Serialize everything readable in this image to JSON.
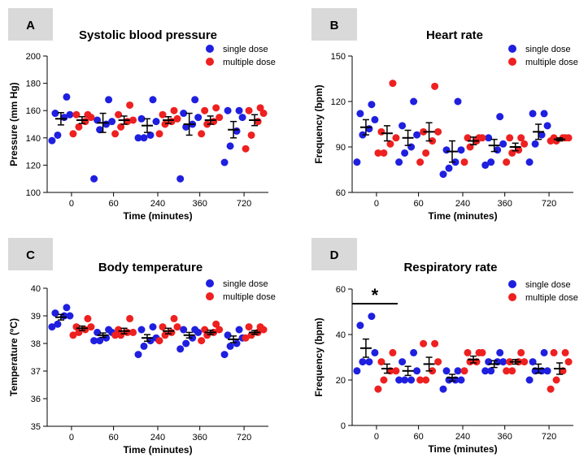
{
  "chart_data": [
    {
      "panel_label": "A",
      "type": "scatter",
      "title": "Systolic blood pressure",
      "xlabel": "Time (minutes)",
      "ylabel": "Pressure (mm Hg)",
      "ylim": [
        100,
        200
      ],
      "yticks": [
        100,
        120,
        140,
        160,
        180,
        200
      ],
      "categories": [
        "0",
        "60",
        "240",
        "360",
        "720"
      ],
      "legend": [
        "single dose",
        "multiple dose"
      ],
      "series": [
        {
          "name": "single dose",
          "color": "#1f1fe0",
          "points": [
            [
              138,
              142,
              155,
              157,
              158,
              170
            ],
            [
              110,
              146,
              150,
              152,
              153,
              168
            ],
            [
              140,
              140,
              142,
              152,
              154,
              168
            ],
            [
              110,
              148,
              150,
              155,
              158,
              168
            ],
            [
              122,
              134,
              145,
              155,
              160,
              160
            ]
          ],
          "mean": [
            154,
            151,
            149,
            150,
            146
          ],
          "sem": [
            4.5,
            7,
            5,
            8,
            6
          ]
        },
        {
          "name": "multiple dose",
          "color": "#ee2020",
          "points": [
            [
              143,
              148,
              152,
              155,
              157,
              157
            ],
            [
              143,
              148,
              152,
              153,
              157,
              164
            ],
            [
              143,
              150,
              152,
              154,
              157,
              160
            ],
            [
              143,
              150,
              152,
              155,
              160,
              162
            ],
            [
              132,
              142,
              152,
              158,
              160,
              162
            ]
          ],
          "mean": [
            153,
            153,
            153,
            153,
            153
          ],
          "sem": [
            2.5,
            3,
            2.5,
            3,
            4
          ]
        }
      ]
    },
    {
      "panel_label": "B",
      "type": "scatter",
      "title": "Heart rate",
      "xlabel": "Time (minutes)",
      "ylabel": "Frequency (bpm)",
      "ylim": [
        60,
        150
      ],
      "yticks": [
        60,
        90,
        120,
        150
      ],
      "categories": [
        "0",
        "60",
        "240",
        "360",
        "720"
      ],
      "legend": [
        "single dose",
        "multiple dose"
      ],
      "series": [
        {
          "name": "single dose",
          "color": "#1f1fe0",
          "points": [
            [
              80,
              98,
              102,
              108,
              112,
              118
            ],
            [
              80,
              86,
              90,
              98,
              104,
              120
            ],
            [
              72,
              76,
              80,
              88,
              88,
              120
            ],
            [
              78,
              80,
              88,
              92,
              96,
              110
            ],
            [
              80,
              92,
              98,
              104,
              112,
              112
            ]
          ],
          "mean": [
            103,
            96,
            87,
            91,
            100
          ],
          "sem": [
            5,
            5,
            7,
            4,
            5
          ]
        },
        {
          "name": "multiple dose",
          "color": "#ee2020",
          "points": [
            [
              86,
              86,
              92,
              96,
              100,
              132
            ],
            [
              80,
              86,
              94,
              100,
              100,
              130
            ],
            [
              80,
              90,
              94,
              96,
              96,
              96
            ],
            [
              80,
              86,
              88,
              92,
              96,
              96
            ],
            [
              94,
              94,
              96,
              96,
              96,
              96
            ]
          ],
          "mean": [
            99,
            100,
            94,
            90,
            95
          ],
          "sem": [
            5,
            6,
            2.5,
            2.5,
            1
          ]
        }
      ]
    },
    {
      "panel_label": "C",
      "type": "scatter",
      "title": "Body temperature",
      "xlabel": "Time (minutes)",
      "ylabel": "Temperature (ºC)",
      "ylim": [
        35,
        40
      ],
      "yticks": [
        35,
        36,
        37,
        38,
        39,
        40
      ],
      "categories": [
        "0",
        "60",
        "240",
        "360",
        "720"
      ],
      "legend": [
        "single dose",
        "multiple dose"
      ],
      "series": [
        {
          "name": "single dose",
          "color": "#1f1fe0",
          "points": [
            [
              38.6,
              38.7,
              39.0,
              39.0,
              39.1,
              39.3
            ],
            [
              38.1,
              38.1,
              38.2,
              38.4,
              38.4,
              38.5
            ],
            [
              37.6,
              37.9,
              38.1,
              38.2,
              38.5,
              38.6
            ],
            [
              37.8,
              38.0,
              38.2,
              38.4,
              38.5,
              38.5
            ],
            [
              37.6,
              37.9,
              38.0,
              38.2,
              38.3,
              38.5
            ]
          ],
          "mean": [
            38.95,
            38.3,
            38.2,
            38.3,
            38.15
          ],
          "sem": [
            0.1,
            0.08,
            0.12,
            0.1,
            0.12
          ]
        },
        {
          "name": "multiple dose",
          "color": "#ee2020",
          "points": [
            [
              38.3,
              38.4,
              38.5,
              38.6,
              38.6,
              38.9
            ],
            [
              38.3,
              38.3,
              38.4,
              38.4,
              38.5,
              38.9
            ],
            [
              38.1,
              38.3,
              38.4,
              38.6,
              38.6,
              38.9
            ],
            [
              38.1,
              38.3,
              38.4,
              38.5,
              38.5,
              38.7
            ],
            [
              38.2,
              38.3,
              38.4,
              38.5,
              38.6,
              38.6
            ]
          ],
          "mean": [
            38.55,
            38.45,
            38.45,
            38.4,
            38.4
          ],
          "sem": [
            0.08,
            0.1,
            0.1,
            0.08,
            0.07
          ]
        }
      ]
    },
    {
      "panel_label": "D",
      "type": "scatter",
      "title": "Respiratory rate",
      "xlabel": "Time (minutes)",
      "ylabel": "Frequency (bpm)",
      "ylim": [
        0,
        60
      ],
      "yticks": [
        0,
        20,
        40,
        60
      ],
      "categories": [
        "0",
        "60",
        "240",
        "360",
        "720"
      ],
      "legend": [
        "single dose",
        "multiple dose"
      ],
      "annotation": "*",
      "series": [
        {
          "name": "single dose",
          "color": "#1f1fe0",
          "points": [
            [
              24,
              28,
              28,
              32,
              44,
              48
            ],
            [
              20,
              20,
              20,
              24,
              28,
              32
            ],
            [
              16,
              20,
              20,
              20,
              24,
              24
            ],
            [
              24,
              24,
              28,
              28,
              28,
              32
            ],
            [
              20,
              24,
              24,
              24,
              28,
              32
            ]
          ],
          "mean": [
            34,
            24,
            21,
            27,
            25
          ],
          "sem": [
            4,
            2,
            1.5,
            1.5,
            2
          ]
        },
        {
          "name": "multiple dose",
          "color": "#ee2020",
          "points": [
            [
              16,
              20,
              24,
              24,
              28,
              32
            ],
            [
              20,
              20,
              24,
              28,
              36,
              36
            ],
            [
              24,
              28,
              28,
              32,
              32,
              32
            ],
            [
              24,
              24,
              28,
              28,
              28,
              32
            ],
            [
              16,
              20,
              24,
              28,
              32,
              32
            ]
          ],
          "mean": [
            25,
            27,
            29,
            28,
            25
          ],
          "sem": [
            2,
            3,
            1.5,
            1,
            2.5
          ]
        }
      ]
    }
  ]
}
